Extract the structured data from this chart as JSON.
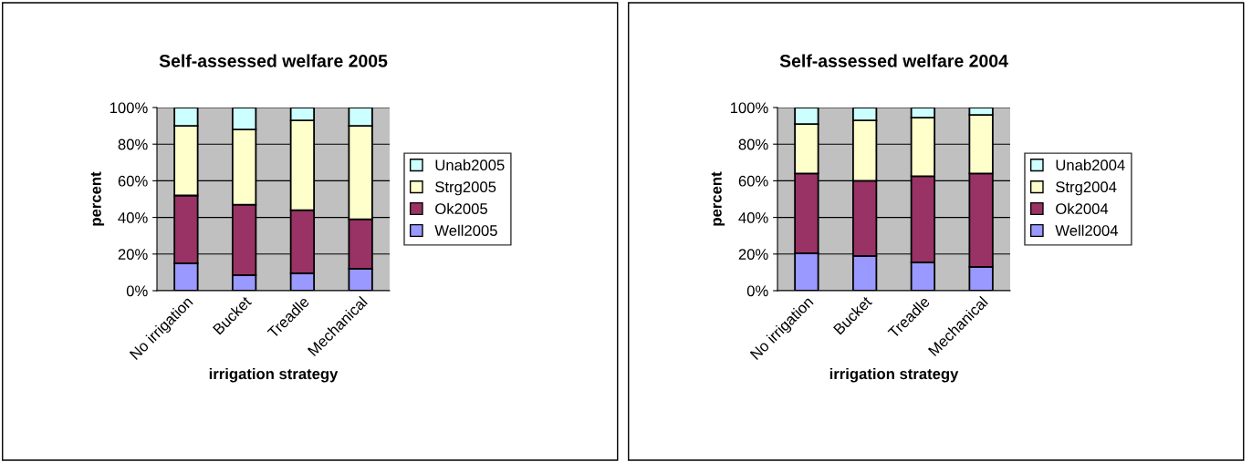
{
  "chart_data": [
    {
      "type": "bar",
      "stacked": true,
      "title": "Self-assessed welfare 2005",
      "xlabel": "irrigation strategy",
      "ylabel": "percent",
      "categories": [
        "No irrigation",
        "Bucket",
        "Treadle",
        "Mechanical"
      ],
      "ylim": [
        0,
        100
      ],
      "yticks": [
        {
          "value": 0,
          "label": "0%"
        },
        {
          "value": 20,
          "label": "20%"
        },
        {
          "value": 40,
          "label": "40%"
        },
        {
          "value": 60,
          "label": "60%"
        },
        {
          "value": 80,
          "label": "80%"
        },
        {
          "value": 100,
          "label": "100%"
        }
      ],
      "grid": "y",
      "legend": "right",
      "series": [
        {
          "name": "Well2005",
          "color": "#9999ff",
          "values": [
            15,
            8.5,
            9.5,
            12
          ]
        },
        {
          "name": "Ok2005",
          "color": "#993366",
          "values": [
            37,
            38.5,
            34.5,
            27
          ]
        },
        {
          "name": "Strg2005",
          "color": "#ffffcc",
          "values": [
            38,
            41,
            49,
            51
          ]
        },
        {
          "name": "Unab2005",
          "color": "#ccffff",
          "values": [
            10,
            12,
            7,
            10
          ]
        }
      ]
    },
    {
      "type": "bar",
      "stacked": true,
      "title": "Self-assessed welfare 2004",
      "xlabel": "irrigation strategy",
      "ylabel": "percent",
      "categories": [
        "No irrigation",
        "Bucket",
        "Treadle",
        "Mechanical"
      ],
      "ylim": [
        0,
        100
      ],
      "yticks": [
        {
          "value": 0,
          "label": "0%"
        },
        {
          "value": 20,
          "label": "20%"
        },
        {
          "value": 40,
          "label": "40%"
        },
        {
          "value": 60,
          "label": "60%"
        },
        {
          "value": 80,
          "label": "80%"
        },
        {
          "value": 100,
          "label": "100%"
        }
      ],
      "grid": "y",
      "legend": "right",
      "series": [
        {
          "name": "Well2004",
          "color": "#9999ff",
          "values": [
            20.5,
            19,
            15.5,
            13
          ]
        },
        {
          "name": "Ok2004",
          "color": "#993366",
          "values": [
            43.5,
            41,
            47,
            51
          ]
        },
        {
          "name": "Strg2004",
          "color": "#ffffcc",
          "values": [
            27,
            33,
            32,
            32
          ]
        },
        {
          "name": "Unab2004",
          "color": "#ccffff",
          "values": [
            9,
            7,
            5.5,
            4
          ]
        }
      ]
    }
  ]
}
